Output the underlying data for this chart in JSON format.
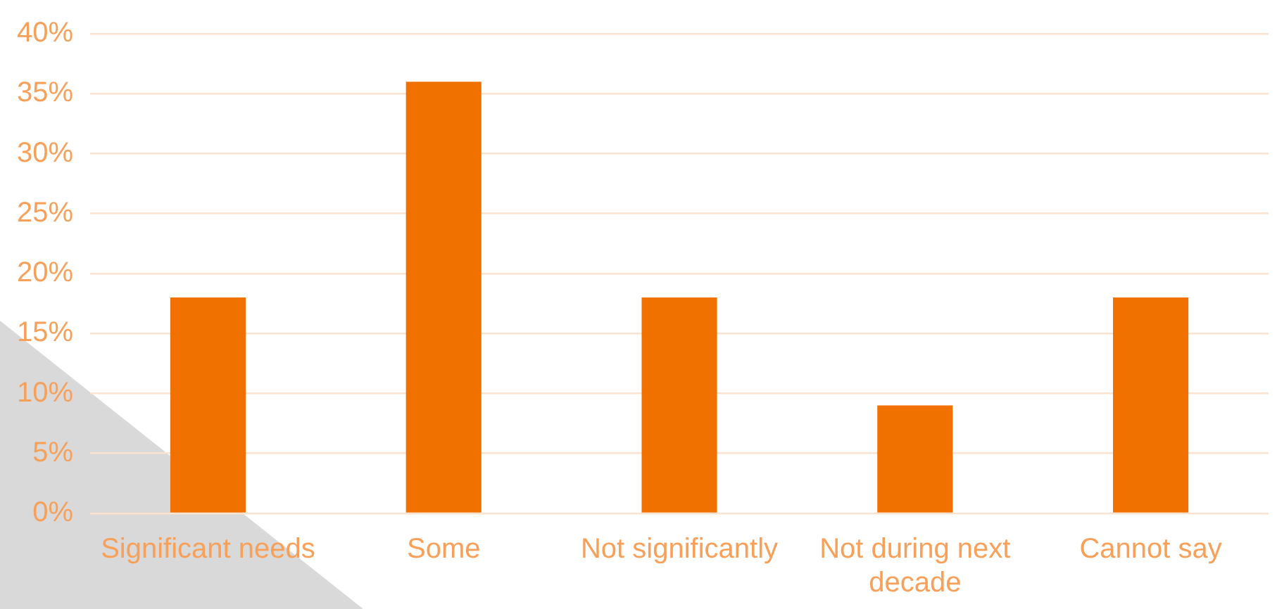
{
  "chart_data": {
    "type": "bar",
    "categories": [
      "Significant needs",
      "Some",
      "Not significantly",
      "Not during next decade",
      "Cannot say"
    ],
    "values": [
      18,
      36,
      18,
      9,
      18
    ],
    "color": "#f07000",
    "ylim": [
      0,
      40
    ],
    "yticks": [
      {
        "value": 0,
        "label": "0%"
      },
      {
        "value": 5,
        "label": "5%"
      },
      {
        "value": 10,
        "label": "10%"
      },
      {
        "value": 15,
        "label": "15%"
      },
      {
        "value": 20,
        "label": "20%"
      },
      {
        "value": 25,
        "label": "25%"
      },
      {
        "value": 30,
        "label": "30%"
      },
      {
        "value": 35,
        "label": "35%"
      },
      {
        "value": 40,
        "label": "40%"
      }
    ],
    "grid": "y"
  }
}
